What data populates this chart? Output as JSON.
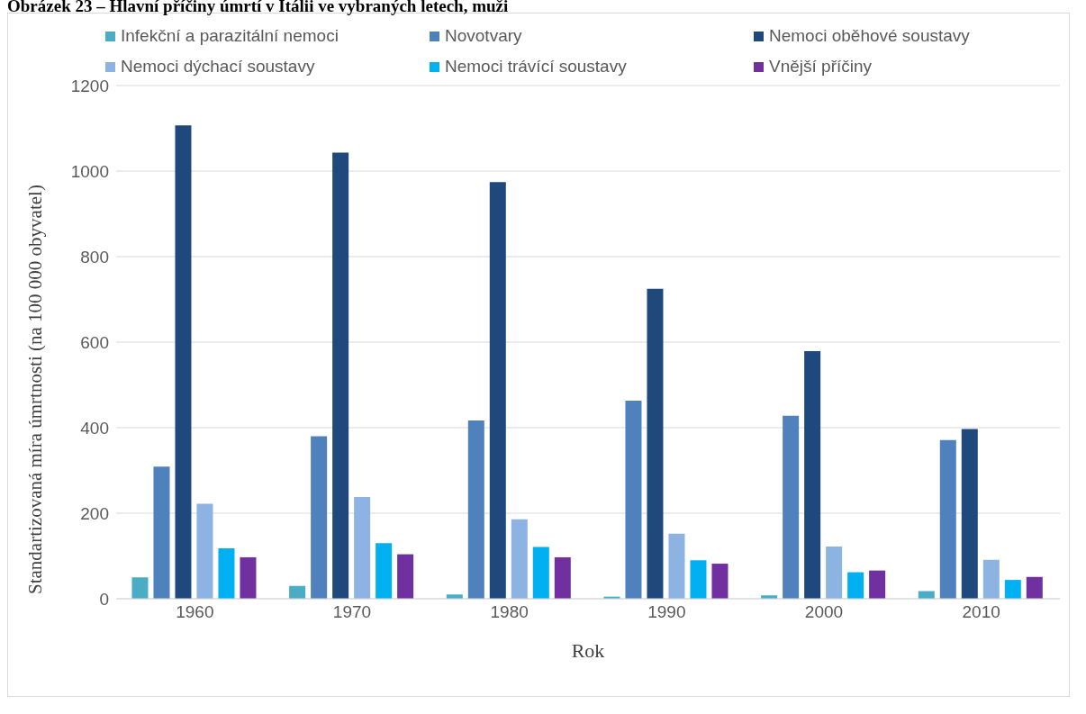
{
  "chart_data": {
    "type": "bar",
    "title": "Obrázek 23 – Hlavní příčiny úmrtí v Itálii ve vybraných letech, muži",
    "xlabel": "Rok",
    "ylabel": "Standartizovaná míra úmrtnosti (na 100 000 obyvatel)",
    "categories": [
      "1960",
      "1970",
      "1980",
      "1990",
      "2000",
      "2010"
    ],
    "series": [
      {
        "name": "Infekční a parazitální nemoci",
        "color": "#4bacc6",
        "values": [
          50,
          30,
          10,
          5,
          8,
          18
        ]
      },
      {
        "name": "Novotvary",
        "color": "#4f81bd",
        "values": [
          309,
          380,
          417,
          463,
          428,
          371
        ]
      },
      {
        "name": "Nemoci oběhové soustavy",
        "color": "#1f497d",
        "values": [
          1107,
          1043,
          974,
          725,
          579,
          397
        ]
      },
      {
        "name": "Nemoci dýchací soustavy",
        "color": "#8db3e2",
        "values": [
          222,
          238,
          186,
          152,
          122,
          91
        ]
      },
      {
        "name": "Nemoci trávící soustavy",
        "color": "#00b0f0",
        "values": [
          118,
          130,
          121,
          90,
          62,
          44
        ]
      },
      {
        "name": "Vnější příčiny",
        "color": "#7030a0",
        "values": [
          97,
          104,
          97,
          82,
          66,
          51
        ]
      }
    ],
    "ylim": [
      0,
      1200
    ],
    "yticks": [
      0,
      200,
      400,
      600,
      800,
      1000,
      1200
    ],
    "grid": "y",
    "legend": "top"
  }
}
